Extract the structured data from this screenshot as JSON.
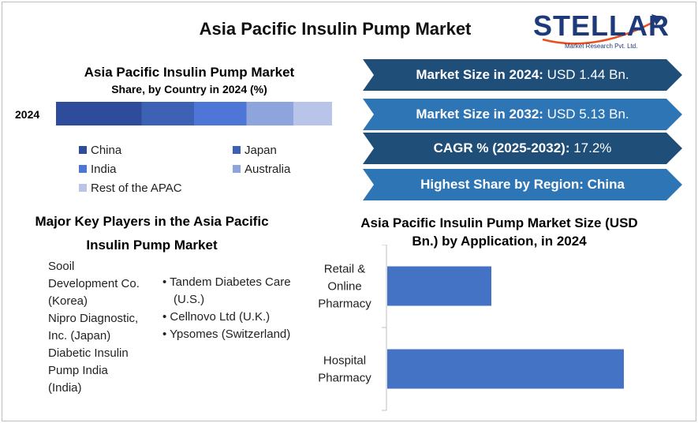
{
  "title": "Asia Pacific Insulin Pump Market",
  "logo": {
    "text": "STELLAR",
    "subtitle": "Market Research Pvt. Ltd."
  },
  "colors": {
    "banner_dark": "#1f4e79",
    "banner_light": "#2e75b6",
    "bar_blue": "#4472c4",
    "china": "#2f4b9c",
    "japan": "#3d61b5",
    "india": "#4d76d6",
    "australia": "#8ea4dc",
    "rest": "#b8c4e8"
  },
  "banners": [
    {
      "label": "Market Size in 2024:",
      "value": "USD 1.44 Bn."
    },
    {
      "label": "Market Size in 2032:",
      "value": "USD 5.13 Bn."
    },
    {
      "label": "CAGR % (2025-2032):",
      "value": "17.2%"
    },
    {
      "label": "Highest Share by Region: China",
      "value": ""
    }
  ],
  "key_players": {
    "title": "Major Key Players in the Asia Pacific Insulin Pump Market",
    "left": [
      "Sooil Development Co. (Korea)",
      "Nipro Diagnostic, Inc. (Japan)",
      "Diabetic Insulin Pump India (India)"
    ],
    "right": [
      "Tandem Diabetes Care (U.S.)",
      "Cellnovo Ltd (U.K.)",
      "Ypsomes (Switzerland)"
    ]
  },
  "chart_data": [
    {
      "type": "bar",
      "orientation": "horizontal-stacked",
      "title": "Asia Pacific Insulin Pump Market",
      "subtitle": "Share, by Country in 2024 (%)",
      "categories": [
        "2024"
      ],
      "series": [
        {
          "name": "China",
          "values": [
            31
          ]
        },
        {
          "name": "Japan",
          "values": [
            19
          ]
        },
        {
          "name": "India",
          "values": [
            19
          ]
        },
        {
          "name": "Australia",
          "values": [
            17
          ]
        },
        {
          "name": "Rest of the APAC",
          "values": [
            14
          ]
        }
      ],
      "xlim": [
        0,
        100
      ],
      "legend": "bottom",
      "grid": false
    },
    {
      "type": "bar",
      "orientation": "horizontal",
      "title": "Asia Pacific Insulin Pump Market Size (USD Bn.) by Application, in 2024",
      "categories": [
        "Retail & Online Pharmacy",
        "Hospital Pharmacy"
      ],
      "category_lines": [
        [
          "Retail &",
          "Online",
          "Pharmacy"
        ],
        [
          "Hospital",
          "Pharmacy"
        ]
      ],
      "values": [
        0.44,
        1.0
      ],
      "xlim": [
        0,
        1.1
      ],
      "grid": false
    }
  ]
}
